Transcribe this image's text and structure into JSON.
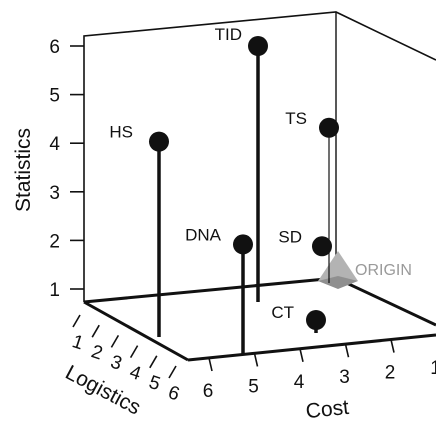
{
  "chart_data": {
    "type": "scatter",
    "subtype": "3d-lollipop",
    "axes": {
      "y": {
        "label": "Statistics",
        "ticks": [
          "1",
          "2",
          "3",
          "4",
          "5",
          "6"
        ],
        "range": [
          1,
          6
        ]
      },
      "x": {
        "label": "Logistics",
        "ticks": [
          "1",
          "2",
          "3",
          "4",
          "5",
          "6"
        ],
        "range": [
          1,
          6
        ]
      },
      "z": {
        "label": "Cost",
        "ticks": [
          "6",
          "5",
          "4",
          "3",
          "2",
          "1"
        ],
        "range": [
          1,
          6
        ]
      }
    },
    "points": [
      {
        "label": "TID",
        "statistics": 6.0
      },
      {
        "label": "HS",
        "statistics": 4.3
      },
      {
        "label": "TS",
        "statistics": 4.4
      },
      {
        "label": "DNA",
        "statistics": 2.0
      },
      {
        "label": "SD",
        "statistics": 1.9
      },
      {
        "label": "CT",
        "statistics": 0.4
      }
    ],
    "origin_marker": {
      "label": "ORIGIN",
      "color": "#a0a0a0"
    },
    "colors": {
      "points": "#111111",
      "axes": "#111111",
      "origin": "#a0a0a0"
    },
    "grid": false
  }
}
